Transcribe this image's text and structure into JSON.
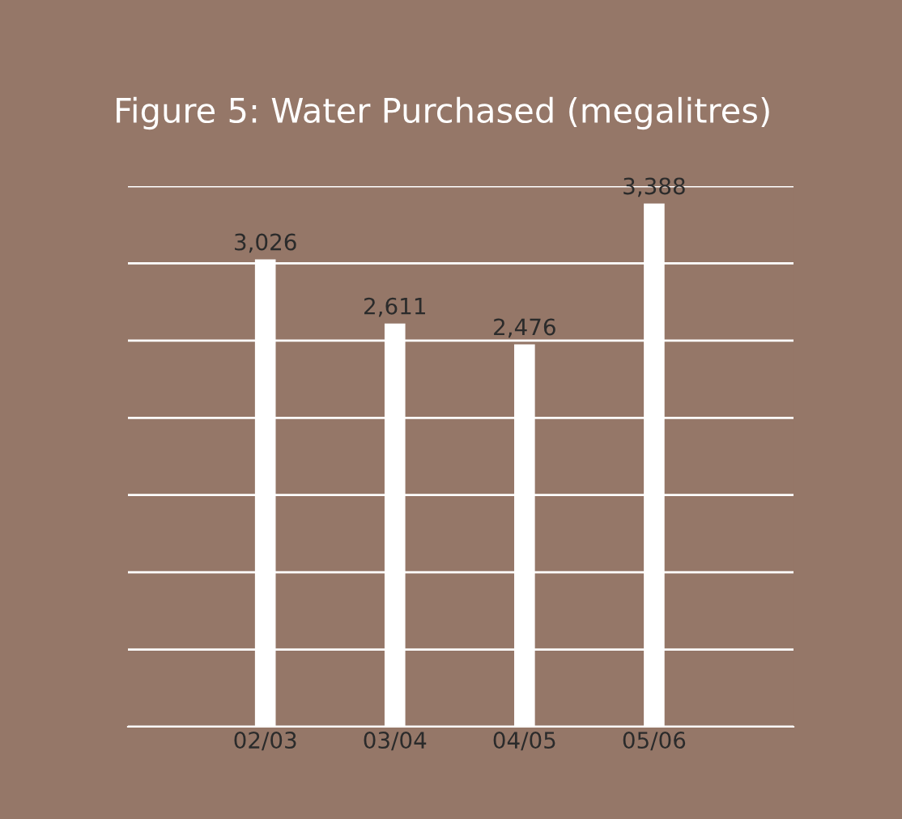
{
  "chart_data": {
    "type": "bar",
    "title": "Figure 5: Water Purchased (megalitres)",
    "categories": [
      "02/03",
      "03/04",
      "04/05",
      "05/06"
    ],
    "values": [
      3026,
      2611,
      2476,
      3388
    ],
    "value_labels": [
      "3,026",
      "2,611",
      "2,476",
      "3,388"
    ],
    "color": "#ffffff",
    "ylim": [
      0,
      3500
    ],
    "yticks": [
      {
        "value": 0,
        "label": null
      },
      {
        "value": 500,
        "label": null
      },
      {
        "value": 1000,
        "label": null
      },
      {
        "value": 1500,
        "label": null
      },
      {
        "value": 2000,
        "label": null
      },
      {
        "value": 2500,
        "label": null
      },
      {
        "value": 3000,
        "label": null
      },
      {
        "value": 3500,
        "label": null
      }
    ],
    "grid": "y"
  }
}
